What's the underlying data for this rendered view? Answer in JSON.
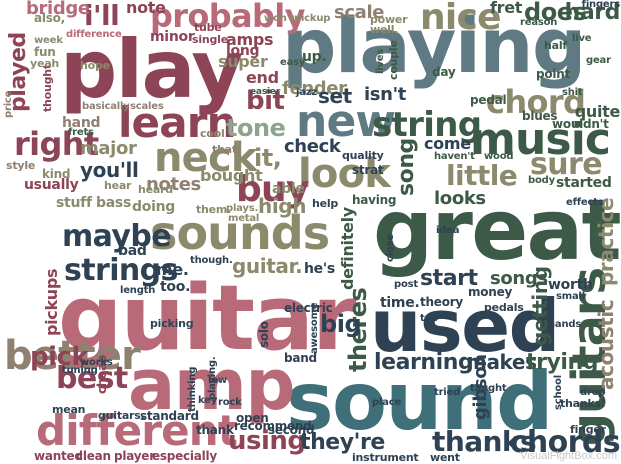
{
  "palette": {
    "rose": "#b96a79",
    "wine": "#8e4457",
    "olive": "#8c8a6c",
    "sage": "#8ca58c",
    "forest": "#3c5a47",
    "slate": "#5f7a82",
    "teal": "#3f6f78",
    "navy": "#2e4254",
    "taupe": "#8f8070",
    "stone": "#9aa39a"
  },
  "words": [
    {
      "text": "playing",
      "color": "slate",
      "icon": null
    },
    {
      "text": "play",
      "color": "wine"
    },
    {
      "text": "guitar",
      "color": "rose"
    },
    {
      "text": "great",
      "color": "forest"
    },
    {
      "text": "sound",
      "color": "teal"
    },
    {
      "text": "used",
      "color": "navy"
    },
    {
      "text": "amp",
      "color": "rose"
    },
    {
      "text": "sounds",
      "color": "olive"
    },
    {
      "text": "music",
      "color": "forest"
    },
    {
      "text": "different",
      "color": "rose"
    },
    {
      "text": "learn",
      "color": "wine"
    },
    {
      "text": "probably",
      "color": "rose"
    },
    {
      "text": "new",
      "color": "slate"
    },
    {
      "text": "string",
      "color": "forest"
    },
    {
      "text": "neck",
      "color": "olive"
    },
    {
      "text": "look",
      "color": "olive"
    },
    {
      "text": "strings",
      "color": "navy"
    },
    {
      "text": "better",
      "color": "taupe"
    },
    {
      "text": "guitars",
      "color": "forest"
    },
    {
      "text": "nice",
      "color": "olive"
    },
    {
      "text": "chord",
      "color": "olive"
    },
    {
      "text": "sure",
      "color": "olive"
    },
    {
      "text": "right",
      "color": "wine"
    },
    {
      "text": "buy",
      "color": "wine"
    },
    {
      "text": "maybe",
      "color": "navy"
    },
    {
      "text": "best",
      "color": "wine"
    },
    {
      "text": "chords",
      "color": "navy"
    },
    {
      "text": "thanks",
      "color": "navy"
    },
    {
      "text": "using",
      "color": "wine"
    },
    {
      "text": "little",
      "color": "olive"
    },
    {
      "text": "tone",
      "color": "sage"
    },
    {
      "text": "bit",
      "color": "wine"
    },
    {
      "text": "i'll",
      "color": "wine"
    },
    {
      "text": "does",
      "color": "forest"
    },
    {
      "text": "hard",
      "color": "forest"
    },
    {
      "text": "fender",
      "color": "olive"
    },
    {
      "text": "learning",
      "color": "navy"
    },
    {
      "text": "makes",
      "color": "navy"
    },
    {
      "text": "trying",
      "color": "forest"
    },
    {
      "text": "start",
      "color": "navy"
    },
    {
      "text": "songs",
      "color": "forest"
    },
    {
      "text": "pick",
      "color": "wine"
    },
    {
      "text": "theres",
      "color": "forest"
    },
    {
      "text": "they're",
      "color": "navy"
    },
    {
      "text": "guitar.",
      "color": "olive"
    },
    {
      "text": "practice",
      "color": "olive"
    },
    {
      "text": "acoustic",
      "color": "taupe"
    },
    {
      "text": "gibson",
      "color": "navy"
    },
    {
      "text": "played",
      "color": "wine"
    },
    {
      "text": "check",
      "color": "navy"
    },
    {
      "text": "sounds",
      "color": "olive"
    },
    {
      "text": "you'll",
      "color": "navy"
    },
    {
      "text": "notes",
      "color": "taupe"
    },
    {
      "text": "bought",
      "color": "olive"
    },
    {
      "text": "high",
      "color": "olive"
    },
    {
      "text": "it,",
      "color": "olive"
    },
    {
      "text": "scale",
      "color": "taupe"
    },
    {
      "text": "pickups",
      "color": "wine"
    },
    {
      "text": "big",
      "color": "navy"
    },
    {
      "text": "set",
      "color": "navy"
    },
    {
      "text": "isn't",
      "color": "navy"
    },
    {
      "text": "fret",
      "color": "forest"
    },
    {
      "text": "first",
      "color": "forest"
    },
    {
      "text": "bridge",
      "color": "rose"
    },
    {
      "text": "note",
      "color": "wine"
    },
    {
      "text": "amps",
      "color": "wine"
    },
    {
      "text": "super",
      "color": "olive"
    },
    {
      "text": "end",
      "color": "wine"
    },
    {
      "text": "long",
      "color": "wine"
    },
    {
      "text": "major",
      "color": "olive"
    },
    {
      "text": "hand",
      "color": "taupe"
    },
    {
      "text": "me.",
      "color": "navy"
    },
    {
      "text": "bad",
      "color": "navy"
    },
    {
      "text": "too.",
      "color": "navy"
    },
    {
      "text": "able",
      "color": "olive"
    },
    {
      "text": "getting",
      "color": "forest"
    },
    {
      "text": "looks",
      "color": "forest"
    },
    {
      "text": "definitely",
      "color": "forest"
    },
    {
      "text": "song",
      "color": "forest"
    },
    {
      "text": "come",
      "color": "navy"
    },
    {
      "text": "blues",
      "color": "forest"
    },
    {
      "text": "quite",
      "color": "forest"
    },
    {
      "text": "wouldn't",
      "color": "forest"
    },
    {
      "text": "started",
      "color": "forest"
    },
    {
      "text": "worth",
      "color": "navy"
    },
    {
      "text": "time.",
      "color": "navy"
    },
    {
      "text": "solo",
      "color": "navy"
    },
    {
      "text": "electric",
      "color": "navy"
    },
    {
      "text": "band",
      "color": "navy"
    },
    {
      "text": "thank",
      "color": "navy"
    },
    {
      "text": "recommend",
      "color": "navy"
    },
    {
      "text": "especially",
      "color": "wine"
    },
    {
      "text": "clean",
      "color": "wine"
    },
    {
      "text": "player",
      "color": "wine"
    },
    {
      "text": "wanted",
      "color": "wine"
    },
    {
      "text": "standard",
      "color": "navy"
    },
    {
      "text": "open",
      "color": "navy"
    },
    {
      "text": "second",
      "color": "navy"
    },
    {
      "text": "instrument",
      "color": "navy"
    },
    {
      "text": "went",
      "color": "navy"
    },
    {
      "text": "finger",
      "color": "navy"
    },
    {
      "text": "thanks!",
      "color": "navy"
    },
    {
      "text": "difference",
      "color": "rose"
    },
    {
      "text": "minor",
      "color": "wine"
    },
    {
      "text": "single",
      "color": "wine"
    },
    {
      "text": "tube",
      "color": "wine"
    },
    {
      "text": "won't",
      "color": "olive"
    },
    {
      "text": "pickup",
      "color": "olive"
    },
    {
      "text": "power",
      "color": "olive"
    },
    {
      "text": "well.",
      "color": "olive"
    },
    {
      "text": "fingers",
      "color": "navy"
    },
    {
      "text": "stuff",
      "color": "olive"
    },
    {
      "text": "bass",
      "color": "olive"
    },
    {
      "text": "doing",
      "color": "olive"
    },
    {
      "text": "heard",
      "color": "olive"
    },
    {
      "text": "hear",
      "color": "olive"
    },
    {
      "text": "kind",
      "color": "olive"
    },
    {
      "text": "usually",
      "color": "wine"
    },
    {
      "text": "style",
      "color": "taupe"
    },
    {
      "text": "price",
      "color": "taupe"
    },
    {
      "text": "thought",
      "color": "wine"
    },
    {
      "text": "basically",
      "color": "taupe"
    },
    {
      "text": "scales",
      "color": "taupe"
    },
    {
      "text": "cool",
      "color": "taupe"
    },
    {
      "text": "that.",
      "color": "taupe"
    },
    {
      "text": "them.",
      "color": "olive"
    },
    {
      "text": "plays.",
      "color": "olive"
    },
    {
      "text": "metal",
      "color": "olive"
    },
    {
      "text": "quality",
      "color": "navy"
    },
    {
      "text": "strat",
      "color": "navy"
    },
    {
      "text": "having",
      "color": "forest"
    },
    {
      "text": "help",
      "color": "navy"
    },
    {
      "text": "jazz",
      "color": "navy"
    },
    {
      "text": "pedal",
      "color": "forest"
    },
    {
      "text": "theory",
      "color": "navy"
    },
    {
      "text": "money",
      "color": "navy"
    },
    {
      "text": "pedals",
      "color": "navy"
    },
    {
      "text": "small",
      "color": "navy"
    },
    {
      "text": "thinking",
      "color": "navy"
    },
    {
      "text": "tuning",
      "color": "navy"
    },
    {
      "text": "though.",
      "color": "navy"
    },
    {
      "text": "picking",
      "color": "navy"
    },
    {
      "text": "he's",
      "color": "navy"
    },
    {
      "text": "cheap",
      "color": "wine"
    },
    {
      "text": "guitars.",
      "color": "navy"
    },
    {
      "text": "playing.",
      "color": "navy"
    },
    {
      "text": "awesome",
      "color": "navy"
    },
    {
      "text": "idea",
      "color": "navy"
    },
    {
      "text": "hope",
      "color": "olive"
    },
    {
      "text": "fun",
      "color": "olive"
    },
    {
      "text": "also,",
      "color": "olive"
    },
    {
      "text": "yeah",
      "color": "olive"
    },
    {
      "text": "week",
      "color": "olive"
    },
    {
      "text": "wood",
      "color": "forest"
    },
    {
      "text": "half",
      "color": "forest"
    },
    {
      "text": "body",
      "color": "forest"
    },
    {
      "text": "shit",
      "color": "forest"
    },
    {
      "text": "point",
      "color": "forest"
    },
    {
      "text": "day",
      "color": "forest"
    },
    {
      "text": "couple",
      "color": "forest"
    },
    {
      "text": "lives",
      "color": "forest"
    },
    {
      "text": "haven't",
      "color": "forest"
    },
    {
      "text": "reason",
      "color": "forest"
    },
    {
      "text": "live",
      "color": "forest"
    },
    {
      "text": "gear",
      "color": "forest"
    },
    {
      "text": "up.",
      "color": "forest"
    },
    {
      "text": "easy",
      "color": "forest"
    },
    {
      "text": "easier",
      "color": "forest"
    },
    {
      "text": "frets",
      "color": "forest"
    },
    {
      "text": "mean",
      "color": "navy"
    },
    {
      "text": "tried",
      "color": "navy"
    },
    {
      "text": "key",
      "color": "navy"
    },
    {
      "text": "rock",
      "color": "navy"
    },
    {
      "text": "works",
      "color": "navy"
    },
    {
      "text": "low",
      "color": "navy"
    },
    {
      "text": "length",
      "color": "navy"
    },
    {
      "text": "tab",
      "color": "navy"
    },
    {
      "text": "post",
      "color": "navy"
    },
    {
      "text": "place",
      "color": "navy"
    },
    {
      "text": "school",
      "color": "navy"
    },
    {
      "text": "taught",
      "color": "navy"
    },
    {
      "text": "drop",
      "color": "navy"
    },
    {
      "text": "hands",
      "color": "navy"
    },
    {
      "text": "effects",
      "color": "navy"
    },
    {
      "text": "close",
      "color": "navy"
    }
  ],
  "watermark": "VisualFightBox.com"
}
